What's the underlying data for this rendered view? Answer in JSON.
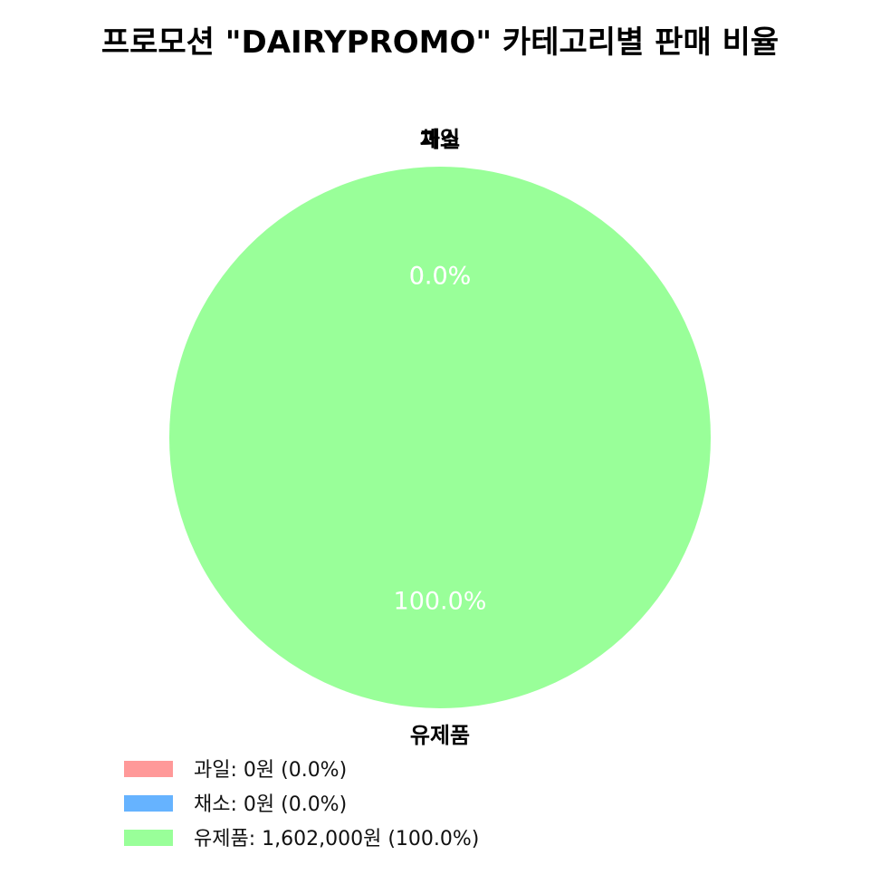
{
  "chart_data": {
    "type": "pie",
    "title": "프로모션 \"DAIRYPROMO\" 카테고리별 판매 비율",
    "categories": [
      "과일",
      "채소",
      "유제품"
    ],
    "values": [
      0,
      0,
      1602000
    ],
    "percent_labels": [
      "0.0%",
      "0.0%",
      "100.0%"
    ],
    "colors": [
      "#ff9999",
      "#66b3ff",
      "#99ff99"
    ],
    "legend": {
      "placement": "bottom-left",
      "entries": [
        "과일: 0원 (0.0%)",
        "채소: 0원 (0.0%)",
        "유제품: 1,602,000원 (100.0%)"
      ]
    }
  }
}
